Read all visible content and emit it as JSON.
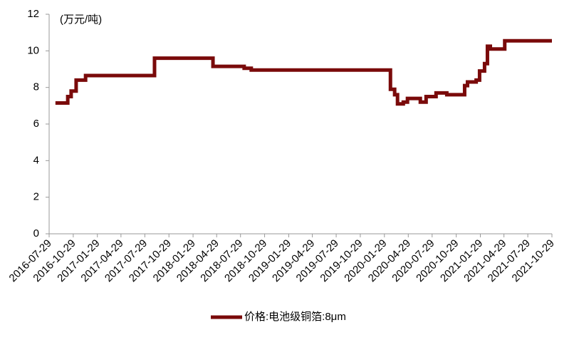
{
  "chart_data": {
    "type": "line",
    "step": "post",
    "unit_label": "(万元/吨)",
    "x": [
      "2016-08-22",
      "2016-10-08",
      "2016-10-21",
      "2016-11-09",
      "2016-12-15",
      "2017-09-04",
      "2018-04-15",
      "2018-08-12",
      "2018-09-08",
      "2020-02-21",
      "2020-03-08",
      "2020-03-19",
      "2020-04-10",
      "2020-04-26",
      "2020-06-14",
      "2020-07-06",
      "2020-08-13",
      "2020-09-23",
      "2020-11-30",
      "2020-12-11",
      "2021-01-13",
      "2021-01-26",
      "2021-02-14",
      "2021-02-25",
      "2021-03-08",
      "2021-05-02",
      "2021-10-29"
    ],
    "series": [
      {
        "name": "价格:电池级铜箔:8μm",
        "color": "#7a0a0a",
        "values": [
          7.15,
          7.5,
          7.8,
          8.4,
          8.65,
          9.6,
          9.15,
          9.05,
          8.95,
          7.9,
          7.6,
          7.1,
          7.2,
          7.4,
          7.2,
          7.5,
          7.7,
          7.6,
          8.1,
          8.3,
          8.4,
          8.9,
          9.3,
          10.25,
          10.1,
          10.55,
          10.55
        ]
      }
    ],
    "xlim": [
      "2016-07-29",
      "2021-10-29"
    ],
    "xticks": [
      "2016-07-29",
      "2016-10-29",
      "2017-01-29",
      "2017-04-29",
      "2017-07-29",
      "2017-10-29",
      "2018-01-29",
      "2018-04-29",
      "2018-07-29",
      "2018-10-29",
      "2019-01-29",
      "2019-04-29",
      "2019-07-29",
      "2019-10-29",
      "2020-01-29",
      "2020-04-29",
      "2020-07-29",
      "2020-10-29",
      "2021-01-29",
      "2021-04-29",
      "2021-07-29",
      "2021-10-29"
    ],
    "ylim": [
      0,
      12
    ],
    "yticks": [
      0,
      2,
      4,
      6,
      8,
      10,
      12
    ],
    "grid": false,
    "legend": "bottom"
  }
}
